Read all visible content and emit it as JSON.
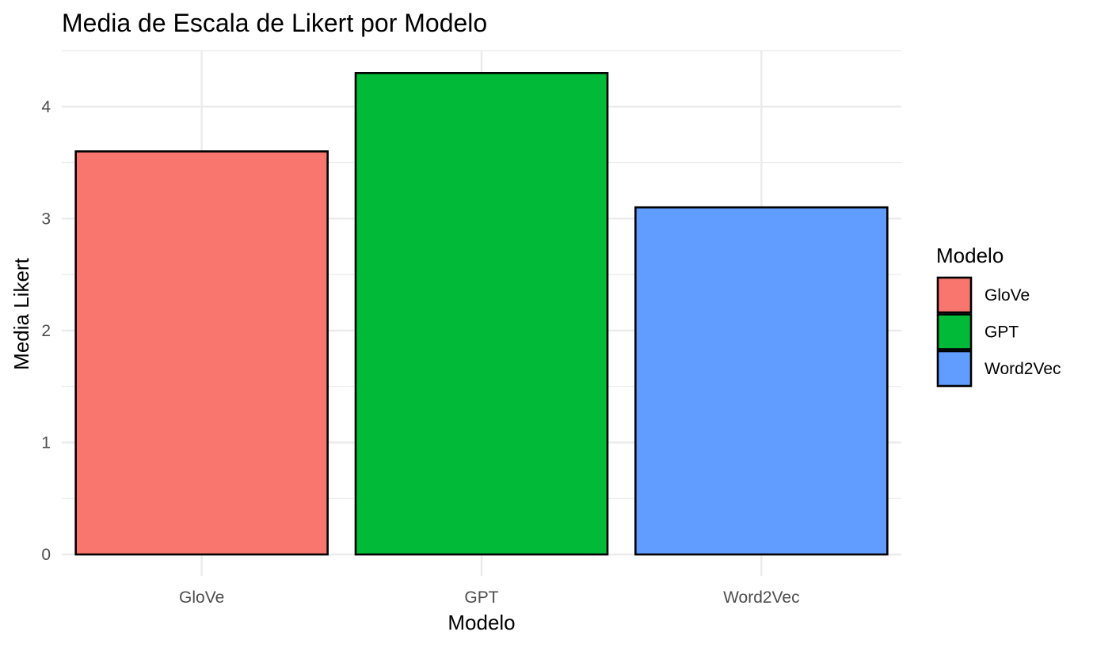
{
  "chart_data": {
    "type": "bar",
    "title": "Media de Escala de Likert por Modelo",
    "xlabel": "Modelo",
    "ylabel": "Media Likert",
    "categories": [
      "GloVe",
      "GPT",
      "Word2Vec"
    ],
    "values": [
      3.6,
      4.3,
      3.1
    ],
    "colors": [
      "#F8766D",
      "#00BA38",
      "#619CFF"
    ],
    "ylim": [
      0,
      4.5
    ],
    "yticks": [
      0,
      1,
      2,
      3,
      4
    ],
    "grid": true,
    "legend": {
      "title": "Modelo",
      "position": "right",
      "entries": [
        "GloVe",
        "GPT",
        "Word2Vec"
      ]
    }
  }
}
